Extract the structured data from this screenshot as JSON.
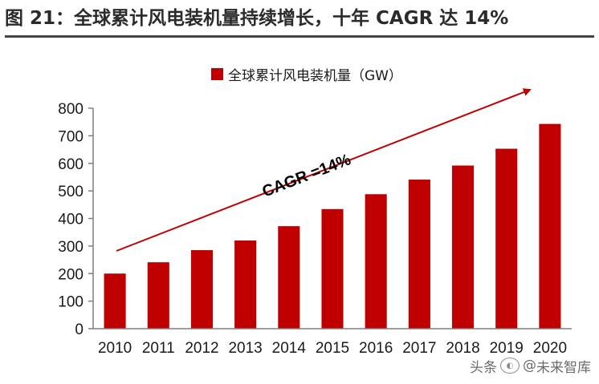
{
  "header": {
    "title": "图 21：全球累计风电装机量持续增长，十年 CAGR 达 14%"
  },
  "colors": {
    "bar": "#C00000",
    "axis": "#7f7f7f",
    "text": "#1a1a1a"
  },
  "watermark": {
    "prefix": "头条",
    "at": "@",
    "name": "未来智库",
    "icon": "wechat-logo-icon"
  },
  "chart_data": {
    "type": "bar",
    "title": "",
    "xlabel": "",
    "ylabel": "",
    "categories": [
      "2010",
      "2011",
      "2012",
      "2013",
      "2014",
      "2015",
      "2016",
      "2017",
      "2018",
      "2019",
      "2020"
    ],
    "series": [
      {
        "name": "全球累计风电装机量（GW）",
        "values": [
          200,
          241,
          285,
          320,
          372,
          434,
          488,
          541,
          592,
          653,
          743
        ]
      }
    ],
    "ylim": [
      0,
      800
    ],
    "yticks": [
      0,
      100,
      200,
      300,
      400,
      500,
      600,
      700,
      800
    ],
    "grid": false,
    "legend_position": "top-center",
    "annotation": {
      "text": "CAGR =14%",
      "style": "diagonal-arrow"
    }
  }
}
